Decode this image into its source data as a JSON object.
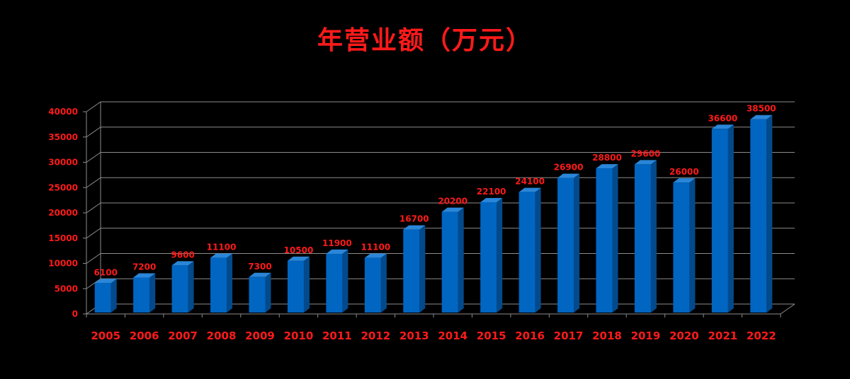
{
  "chart_data": {
    "type": "bar",
    "title": "年营业额（万元）",
    "categories": [
      "2005",
      "2006",
      "2007",
      "2008",
      "2009",
      "2010",
      "2011",
      "2012",
      "2013",
      "2014",
      "2015",
      "2016",
      "2017",
      "2018",
      "2019",
      "2020",
      "2021",
      "2022"
    ],
    "values": [
      6100,
      7200,
      9600,
      11100,
      7300,
      10500,
      11900,
      11100,
      16700,
      20200,
      22100,
      24100,
      26900,
      28800,
      29600,
      26000,
      36600,
      38500
    ],
    "ylim": [
      0,
      40000
    ],
    "yticks": [
      0,
      5000,
      10000,
      15000,
      20000,
      25000,
      30000,
      35000,
      40000
    ],
    "xlabel": "",
    "ylabel": "",
    "grid": true,
    "style": "3d-column",
    "colors": {
      "bar_front": "#0066c2",
      "bar_side": "#024a8c",
      "bar_top": "#2a86d8",
      "text": "#ff1a1a",
      "grid": "#8c8c8c",
      "background": "#000000"
    }
  }
}
